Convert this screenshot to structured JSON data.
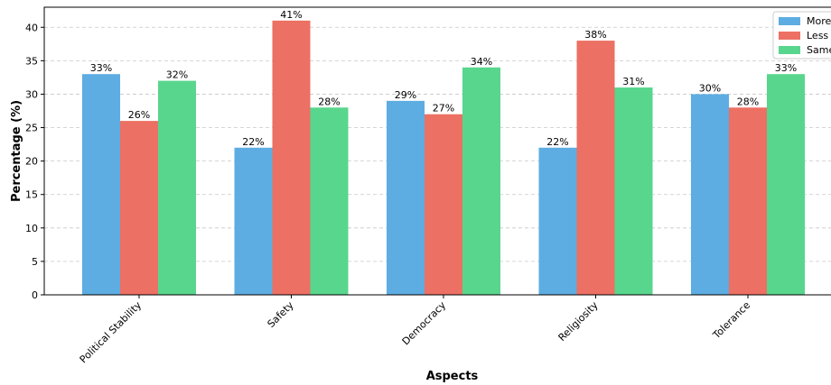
{
  "chart_data": {
    "type": "bar",
    "categories": [
      "Political Stability",
      "Safety",
      "Democracy",
      "Religiosity",
      "Tolerance"
    ],
    "series": [
      {
        "name": "More",
        "values": [
          33,
          22,
          29,
          22,
          30
        ],
        "color": "#5dade2"
      },
      {
        "name": "Less",
        "values": [
          26,
          41,
          27,
          38,
          28
        ],
        "color": "#ec7063"
      },
      {
        "name": "Same",
        "values": [
          32,
          28,
          34,
          31,
          33
        ],
        "color": "#58d68d"
      }
    ],
    "xlabel": "Aspects",
    "ylabel": "Percentage (%)",
    "ylim": [
      0,
      43
    ],
    "yticks": [
      0,
      5,
      10,
      15,
      20,
      25,
      30,
      35,
      40
    ],
    "grid": "y-dashed",
    "legend": "top-right",
    "value_label_suffix": "%"
  }
}
